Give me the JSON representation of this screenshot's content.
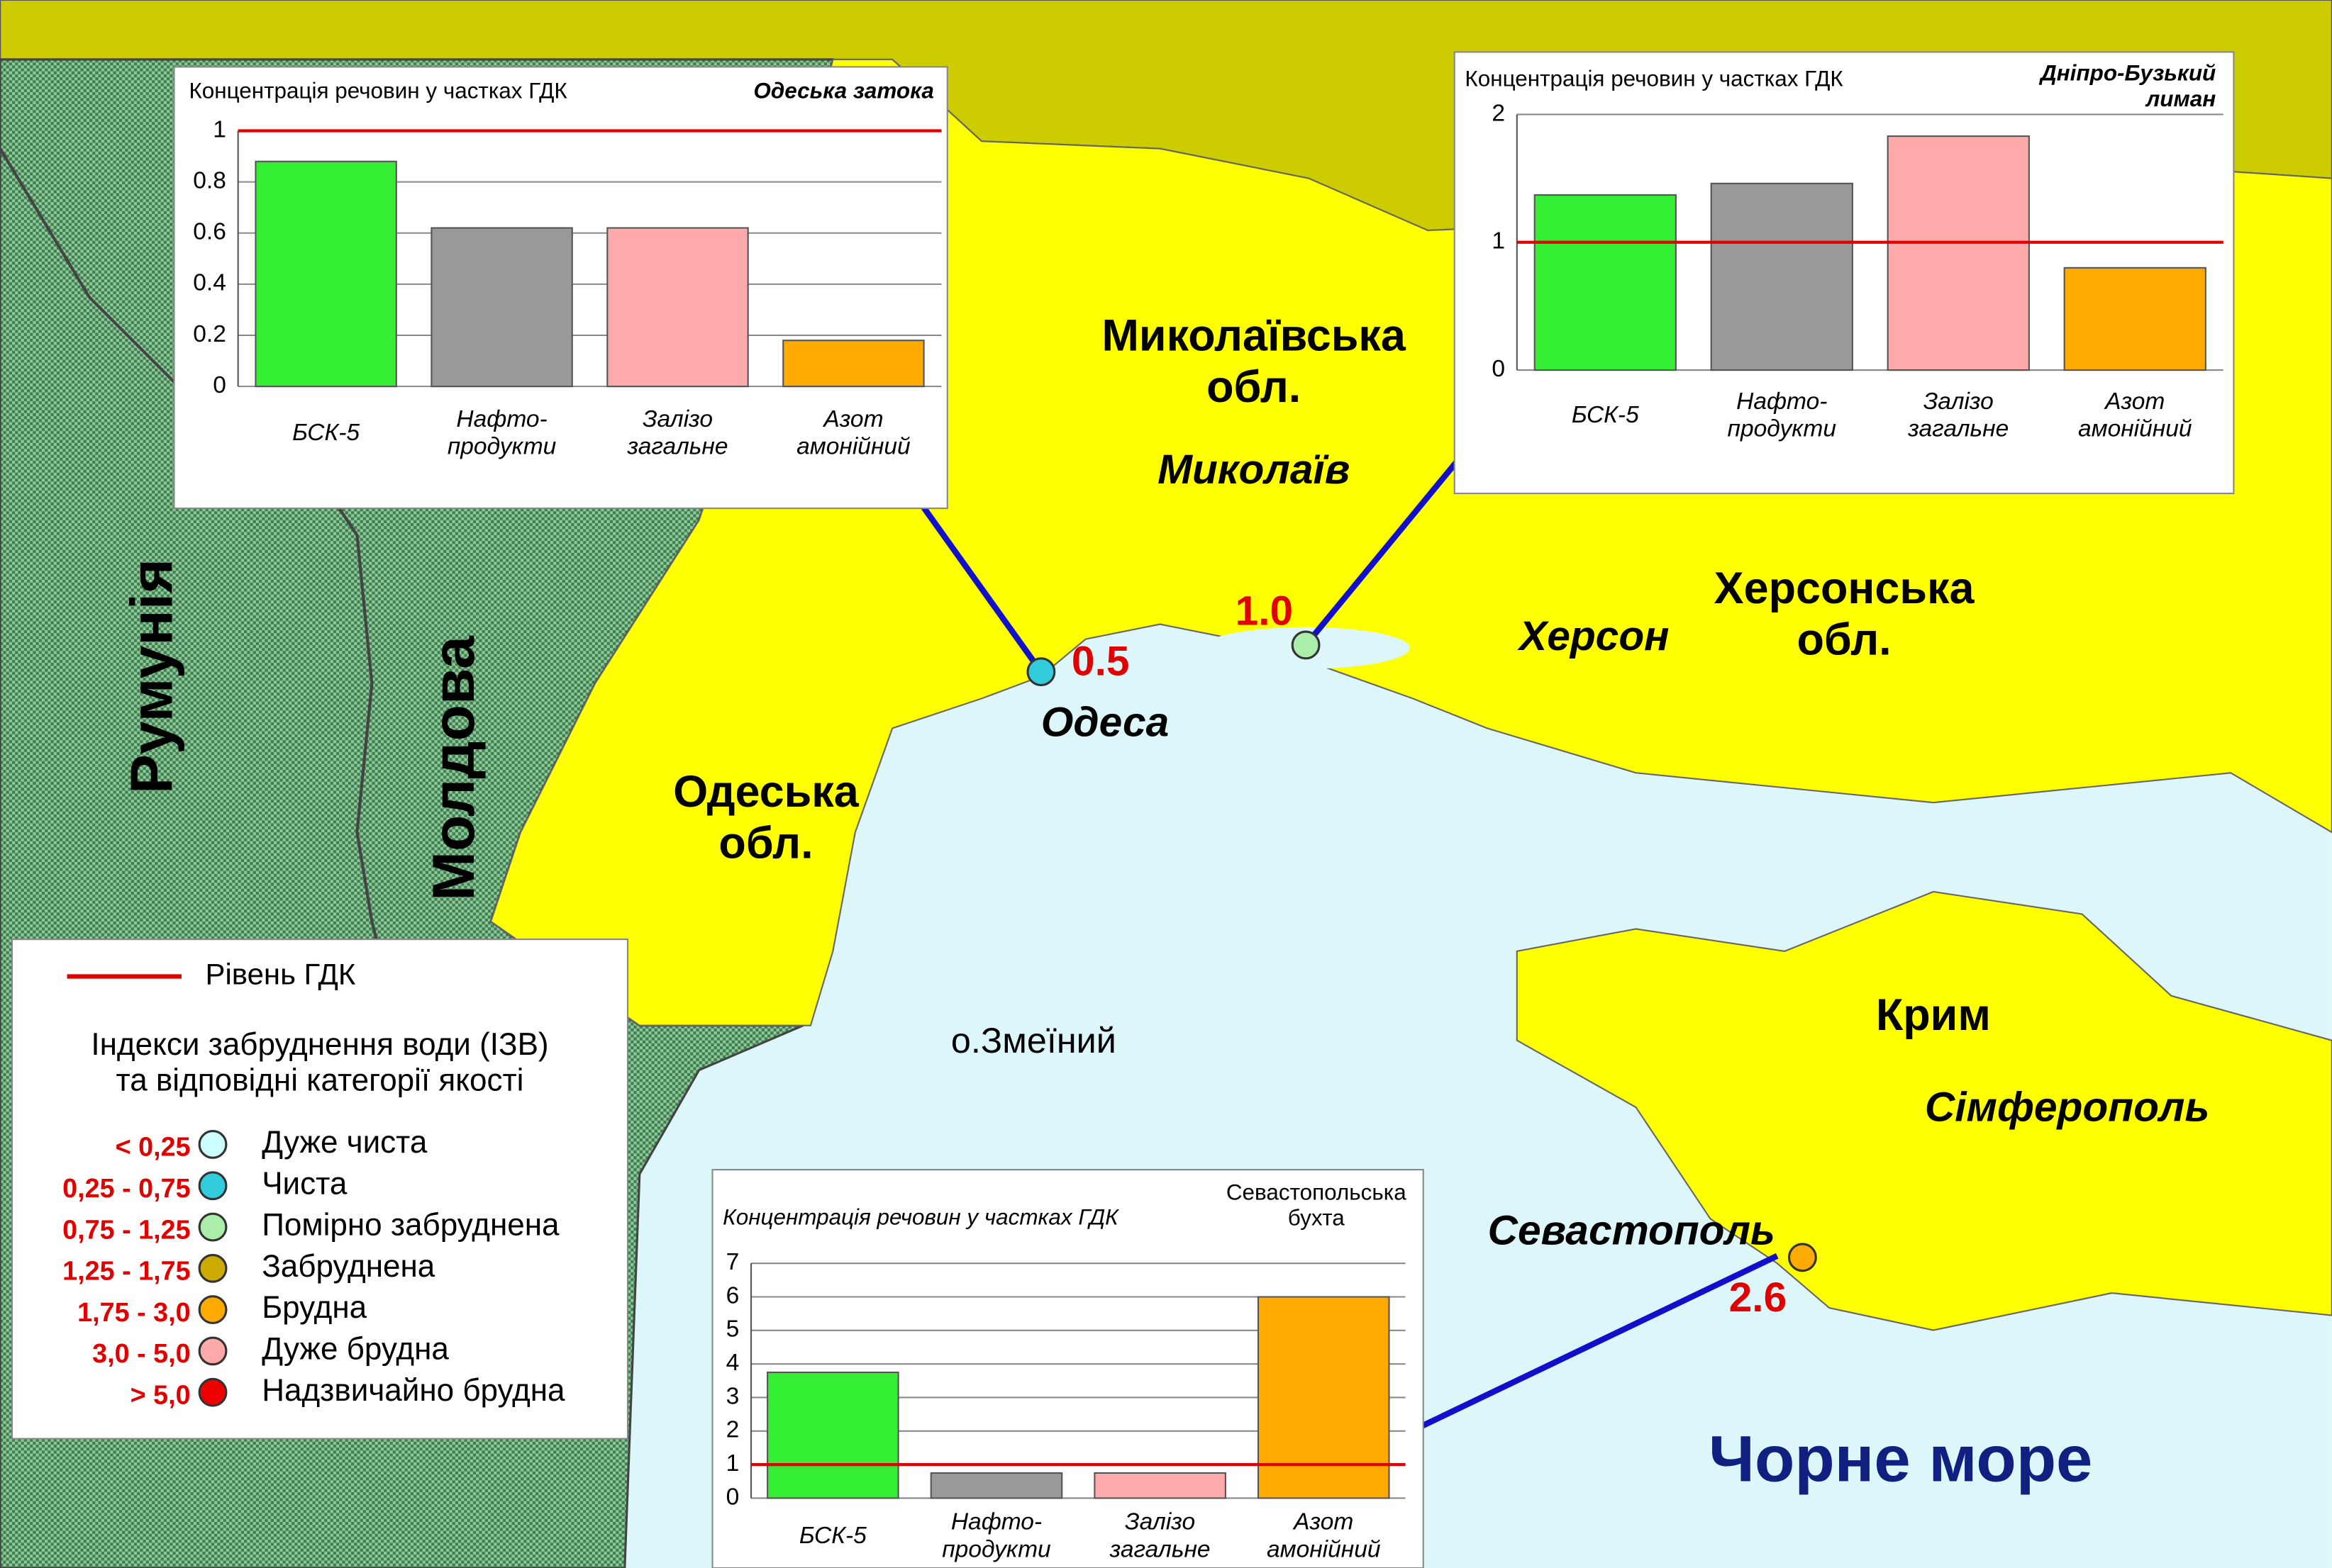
{
  "map": {
    "labels": [
      "Миколаївська\nобл.",
      "Миколаїв",
      "Херсонська\nобл.",
      "Херсон",
      "Одеська\nобл.",
      "Одеса",
      "Крим",
      "Сімферополь",
      "Севастополь",
      "о.Змеїний",
      "Чорне море",
      "Румунія",
      "Молдова"
    ],
    "sites": [
      {
        "label": "0.5",
        "color": "#33ccdd"
      },
      {
        "label": "1.0",
        "color": "#aaeeaa"
      },
      {
        "label": "2.6",
        "color": "#ffaa00"
      }
    ]
  },
  "legend": {
    "line_label": "Рівень ГДК",
    "line_color": "#e00000",
    "title": "Індекси забруднення води (ІЗВ)\nта відповідні категорії якості",
    "items": [
      {
        "range": "< 0,25",
        "name": "Дуже чиста",
        "color": "#ccffff"
      },
      {
        "range": "0,25 - 0,75",
        "name": "Чиста",
        "color": "#33ccdd"
      },
      {
        "range": "0,75 - 1,25",
        "name": "Помірно забруднена",
        "color": "#aaeeaa"
      },
      {
        "range": "1,25 - 1,75",
        "name": "Забруднена",
        "color": "#ccaa00"
      },
      {
        "range": "1,75 - 3,0",
        "name": "Брудна",
        "color": "#ffaa00"
      },
      {
        "range": "3,0 - 5,0",
        "name": "Дуже брудна",
        "color": "#ffaaaa"
      },
      {
        "range": "> 5,0",
        "name": "Надзвичайно брудна",
        "color": "#ee0000"
      }
    ]
  },
  "chart_data": [
    {
      "type": "bar",
      "title": "Концентрація речовин у частках ГДК",
      "subtitle": "Одеська затока",
      "categories": [
        "БСК-5",
        "Нафто-\nпродукти",
        "Залізо\nзагальне",
        "Азот\nамонійний"
      ],
      "values": [
        0.88,
        0.62,
        0.62,
        0.18
      ],
      "colors": [
        "#33ee33",
        "#999999",
        "#ffaaaa",
        "#ffaa00"
      ],
      "ylim": [
        0,
        1
      ],
      "yticks": [
        0,
        0.2,
        0.4,
        0.6,
        0.8,
        1
      ],
      "grid": true,
      "reference_line": 1,
      "reference_color": "#e00000"
    },
    {
      "type": "bar",
      "title": "Концентрація речовин у частках ГДК",
      "subtitle": "Дніпро-Бузький\nлиман",
      "categories": [
        "БСК-5",
        "Нафто-\nпродукти",
        "Залізо\nзагальне",
        "Азот\nамонійний"
      ],
      "values": [
        1.37,
        1.46,
        1.83,
        0.8
      ],
      "colors": [
        "#33ee33",
        "#999999",
        "#ffaaaa",
        "#ffaa00"
      ],
      "ylim": [
        0,
        2
      ],
      "yticks": [
        0,
        1,
        2
      ],
      "grid": true,
      "reference_line": 1,
      "reference_color": "#e00000"
    },
    {
      "type": "bar",
      "title": "Концентрація речовин у частках ГДК",
      "subtitle": "Севастопольська\nбухта",
      "categories": [
        "БСК-5",
        "Нафто-\nпродукти",
        "Залізо\nзагальне",
        "Азот\nамонійний"
      ],
      "values": [
        3.75,
        0.75,
        0.75,
        6
      ],
      "colors": [
        "#33ee33",
        "#999999",
        "#ffaaaa",
        "#ffaa00"
      ],
      "ylim": [
        0,
        7
      ],
      "yticks": [
        0,
        1,
        2,
        3,
        4,
        5,
        6,
        7
      ],
      "grid": true,
      "reference_line": 1,
      "reference_color": "#e00000"
    }
  ]
}
